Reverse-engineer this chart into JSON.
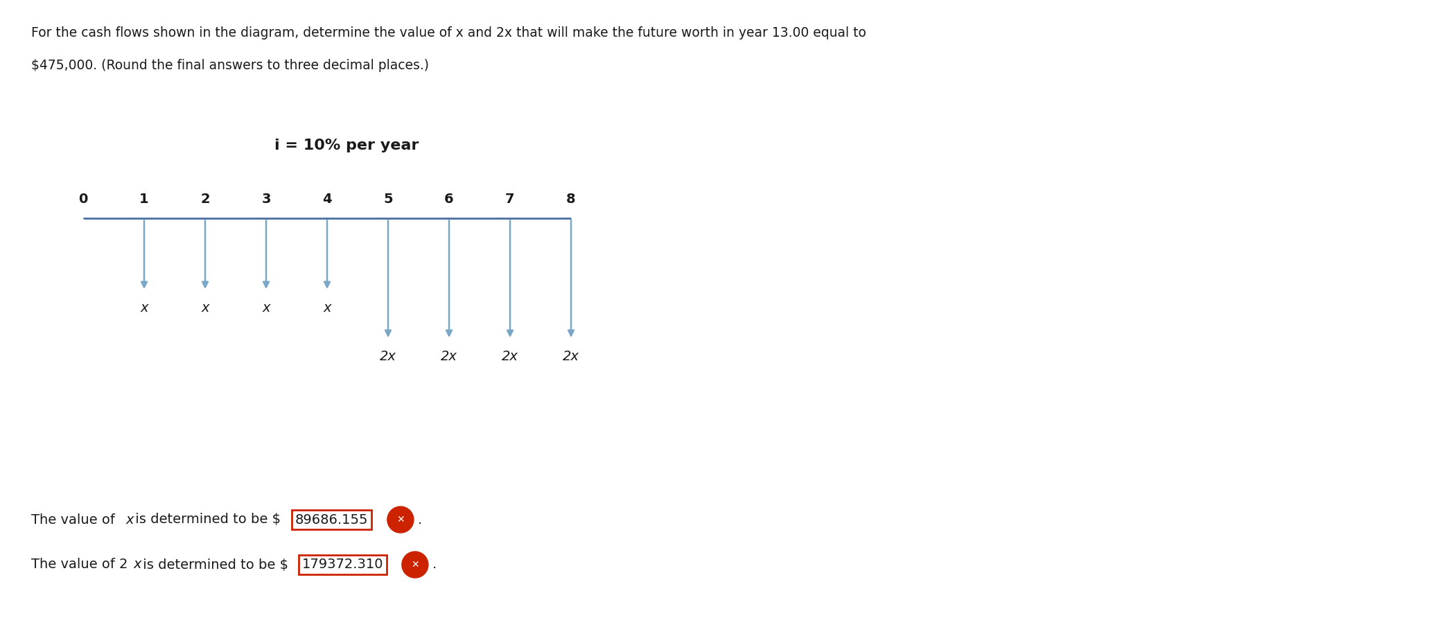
{
  "title_line1": "For the cash flows shown in the diagram, determine the value of x and 2x that will make the future worth in year 13.00 equal to",
  "title_line2": "$475,000. (Round the final answers to three decimal places.)",
  "interest_label": "i = 10% per year",
  "timeline_years": [
    "0",
    "1",
    "2",
    "3",
    "4",
    "5",
    "6",
    "7",
    "8"
  ],
  "short_arrow_years_idx": [
    1,
    2,
    3,
    4
  ],
  "short_arrow_label": "x",
  "long_arrow_years_idx": [
    5,
    6,
    7,
    8
  ],
  "long_arrow_label": "2x",
  "answer_x_label": "The value of ",
  "answer_x_italic": "x",
  "answer_x_rest": " is determined to be $",
  "answer_x_value": "89686.155",
  "answer_2x_label": "The value of 2",
  "answer_2x_italic": "x",
  "answer_2x_rest": " is determined to be $",
  "answer_2x_value": "179372.310",
  "arrow_color": "#7ba7c7",
  "timeline_color": "#4a6fa5",
  "text_color": "#1a1a1a",
  "box_border_color": "#cc2200",
  "wrong_icon_color": "#cc2200",
  "background_color": "#ffffff",
  "fig_width": 20.75,
  "fig_height": 9.15,
  "dpi": 100
}
